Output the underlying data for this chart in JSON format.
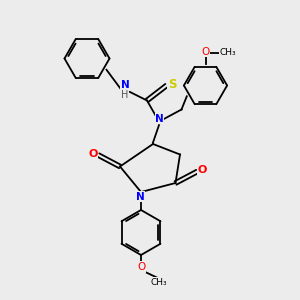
{
  "bg_color": "#ececec",
  "atom_colors": {
    "N": "#0000ff",
    "O": "#ff0000",
    "S": "#cccc00",
    "C": "#000000",
    "H": "#555555"
  },
  "figsize": [
    3.0,
    3.0
  ],
  "dpi": 100
}
